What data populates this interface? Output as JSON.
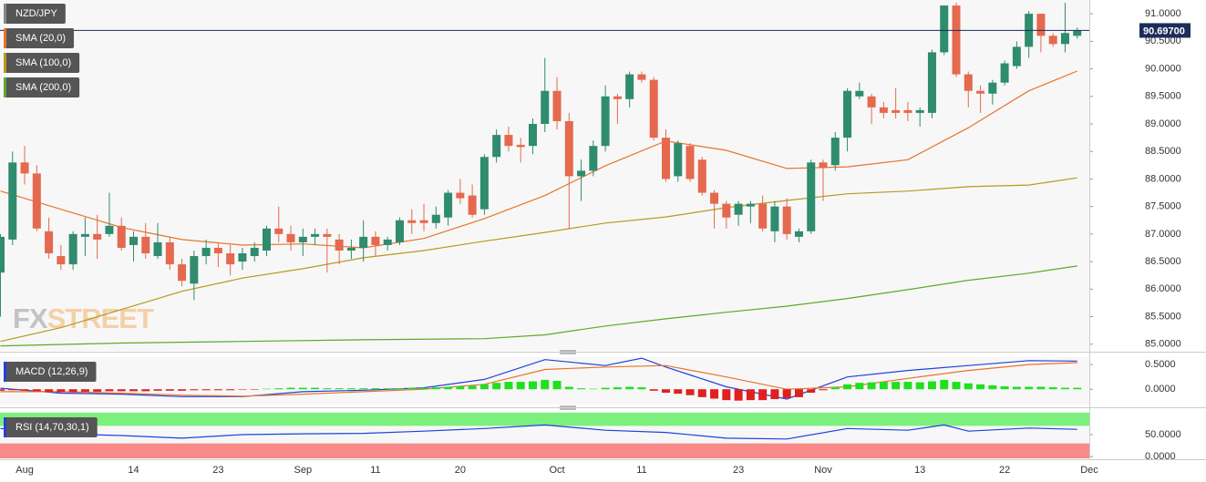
{
  "watermark": [
    "FX",
    "STREET"
  ],
  "chart_data": [
    {
      "type": "candlestick",
      "name": "NZD/JPY",
      "colors": {
        "up": "#2f8c6e",
        "down": "#e4694e"
      },
      "open": [
        86.3,
        86.9,
        88.3,
        88.1,
        87.05,
        86.6,
        86.45,
        86.95,
        87.0,
        87.0,
        87.15,
        86.8,
        86.95,
        86.6,
        86.85,
        86.45,
        86.1,
        86.6,
        86.75,
        86.65,
        86.5,
        86.6,
        86.7,
        87.1,
        87.0,
        86.85,
        86.95,
        87.0,
        86.9,
        86.7,
        86.75,
        86.95,
        86.8,
        86.85,
        87.25,
        87.25,
        87.2,
        87.3,
        87.75,
        87.7,
        87.45,
        88.4,
        88.8,
        88.62,
        88.6,
        89.0,
        89.6,
        89.05,
        88.05,
        88.15,
        88.6,
        89.5,
        89.45,
        89.9,
        89.8,
        88.75,
        88.05,
        88.6,
        88.35,
        87.75,
        87.55,
        87.35,
        87.5,
        87.55,
        87.05,
        87.5,
        86.95,
        87.05,
        88.3,
        88.25,
        88.75,
        89.5,
        89.5,
        89.3,
        89.25,
        89.25,
        89.2,
        89.2,
        90.3,
        91.15,
        89.9,
        89.6,
        89.55,
        89.75,
        90.05,
        90.4,
        91.0,
        90.6,
        90.45,
        90.6
      ],
      "high": [
        87.0,
        88.5,
        88.6,
        88.25,
        87.3,
        86.8,
        87.05,
        87.3,
        87.35,
        87.75,
        87.3,
        87.05,
        87.2,
        87.2,
        86.95,
        86.55,
        86.7,
        86.9,
        86.85,
        86.8,
        86.75,
        86.85,
        87.15,
        87.5,
        87.15,
        87.1,
        87.1,
        87.1,
        87.0,
        86.9,
        87.25,
        87.05,
        86.95,
        87.3,
        87.45,
        87.55,
        87.5,
        87.8,
        88.0,
        87.9,
        88.45,
        88.9,
        88.95,
        88.75,
        89.1,
        90.2,
        89.85,
        89.2,
        88.35,
        88.7,
        89.7,
        89.55,
        89.95,
        89.95,
        89.85,
        88.9,
        88.7,
        88.65,
        88.4,
        87.8,
        87.6,
        87.6,
        87.6,
        87.7,
        87.6,
        87.65,
        87.1,
        88.35,
        88.35,
        88.85,
        89.65,
        89.75,
        89.55,
        89.4,
        89.65,
        89.4,
        89.3,
        90.35,
        91.15,
        91.2,
        89.95,
        89.7,
        89.8,
        90.15,
        90.5,
        91.05,
        91.0,
        90.65,
        91.2,
        90.75
      ],
      "low": [
        85.5,
        86.8,
        87.9,
        87.05,
        86.55,
        86.35,
        86.35,
        86.6,
        86.55,
        86.95,
        86.7,
        86.5,
        86.55,
        86.55,
        86.35,
        86.05,
        85.8,
        86.45,
        86.4,
        86.25,
        86.35,
        86.5,
        86.6,
        86.85,
        86.7,
        86.6,
        86.8,
        86.3,
        86.45,
        86.55,
        86.5,
        86.6,
        86.7,
        86.8,
        87.0,
        87.05,
        87.1,
        87.15,
        87.55,
        87.3,
        87.35,
        88.3,
        88.5,
        88.3,
        88.45,
        88.85,
        88.9,
        87.1,
        87.6,
        88.05,
        88.5,
        89.0,
        89.3,
        89.75,
        88.7,
        87.95,
        87.95,
        87.95,
        87.7,
        87.1,
        87.1,
        87.15,
        87.2,
        87.05,
        86.85,
        86.9,
        86.85,
        87.0,
        87.6,
        88.15,
        88.5,
        89.45,
        89.0,
        89.1,
        89.1,
        89.05,
        88.95,
        89.1,
        90.25,
        89.85,
        89.3,
        89.2,
        89.35,
        89.7,
        90.0,
        90.2,
        90.3,
        90.4,
        90.3,
        90.55
      ],
      "close": [
        86.95,
        88.3,
        88.1,
        87.1,
        86.65,
        86.45,
        87.0,
        87.0,
        86.9,
        87.15,
        86.75,
        86.95,
        86.65,
        86.85,
        86.45,
        86.15,
        86.6,
        86.75,
        86.65,
        86.45,
        86.65,
        86.75,
        87.1,
        87.0,
        86.85,
        86.95,
        87.0,
        86.95,
        86.7,
        86.75,
        86.95,
        86.8,
        86.9,
        87.25,
        87.2,
        87.2,
        87.35,
        87.75,
        87.65,
        87.35,
        88.4,
        88.8,
        88.6,
        88.58,
        89.0,
        89.6,
        89.05,
        88.05,
        88.15,
        88.6,
        89.5,
        89.45,
        89.9,
        89.8,
        88.75,
        88.0,
        88.65,
        88.0,
        87.75,
        87.55,
        87.3,
        87.55,
        87.55,
        87.1,
        87.5,
        87.0,
        87.05,
        88.3,
        88.2,
        88.75,
        89.6,
        89.6,
        89.3,
        89.2,
        89.2,
        89.2,
        89.25,
        90.3,
        91.15,
        89.9,
        89.6,
        89.55,
        89.75,
        90.1,
        90.4,
        91.0,
        90.6,
        90.45,
        90.65,
        90.7
      ],
      "series": [
        {
          "name": "SMA (20,0)",
          "color": "#e8742a",
          "x": [
            0,
            5,
            10,
            15,
            20,
            25,
            30,
            35,
            40,
            45,
            50,
            55,
            60,
            65,
            70,
            75,
            80,
            85,
            89
          ],
          "values": [
            87.78,
            87.45,
            87.12,
            86.9,
            86.8,
            86.82,
            86.75,
            86.92,
            87.28,
            87.7,
            88.24,
            88.69,
            88.52,
            88.19,
            88.22,
            88.35,
            88.93,
            89.6,
            89.96
          ]
        },
        {
          "name": "SMA (100,0)",
          "color": "#b59a1e",
          "x": [
            0,
            5,
            10,
            15,
            20,
            25,
            30,
            35,
            40,
            45,
            50,
            55,
            60,
            65,
            70,
            75,
            80,
            85,
            89
          ],
          "values": [
            85.05,
            85.3,
            85.63,
            85.96,
            86.2,
            86.37,
            86.57,
            86.7,
            86.87,
            87.03,
            87.2,
            87.31,
            87.48,
            87.61,
            87.73,
            87.78,
            87.86,
            87.89,
            88.02
          ]
        },
        {
          "name": "SMA (200,0)",
          "color": "#5aab2a",
          "x": [
            0,
            10,
            20,
            30,
            40,
            45,
            50,
            55,
            60,
            65,
            70,
            75,
            80,
            85,
            89
          ],
          "values": [
            84.97,
            85.02,
            85.05,
            85.08,
            85.1,
            85.17,
            85.33,
            85.46,
            85.58,
            85.69,
            85.83,
            85.99,
            86.16,
            86.29,
            86.42
          ]
        }
      ],
      "last": {
        "value": 90.697,
        "label": "90.69700"
      },
      "xlim": [
        0,
        90
      ],
      "ylim": [
        84.88,
        91.25
      ],
      "yticks": [
        {
          "value": 85,
          "label": "85.0000"
        },
        {
          "value": 85.5,
          "label": "85.5000"
        },
        {
          "value": 86,
          "label": "86.0000"
        },
        {
          "value": 86.5,
          "label": "86.5000"
        },
        {
          "value": 87,
          "label": "87.0000"
        },
        {
          "value": 87.5,
          "label": "87.5000"
        },
        {
          "value": 88,
          "label": "88.0000"
        },
        {
          "value": 88.5,
          "label": "88.5000"
        },
        {
          "value": 89,
          "label": "89.0000"
        },
        {
          "value": 89.5,
          "label": "89.5000"
        },
        {
          "value": 90,
          "label": "90.0000"
        },
        {
          "value": 90.5,
          "label": "90.5000"
        },
        {
          "value": 91,
          "label": "91.0000"
        }
      ],
      "grid": true
    },
    {
      "type": "macd",
      "name": "MACD (12,26,9)",
      "histogram": {
        "colors": {
          "up": "#1fe01f",
          "down": "#e01f1f"
        },
        "values": [
          -0.03,
          -0.02,
          -0.03,
          -0.04,
          -0.05,
          -0.06,
          -0.06,
          -0.05,
          -0.05,
          -0.04,
          -0.04,
          -0.04,
          -0.04,
          -0.03,
          -0.03,
          -0.03,
          -0.02,
          -0.02,
          -0.02,
          -0.02,
          -0.01,
          -0.01,
          0.01,
          0.02,
          0.03,
          0.03,
          0.03,
          0.02,
          0.02,
          0.02,
          0.02,
          0.02,
          0.02,
          0.02,
          0.03,
          0.03,
          0.04,
          0.05,
          0.06,
          0.07,
          0.1,
          0.13,
          0.15,
          0.15,
          0.16,
          0.19,
          0.17,
          0.05,
          0.02,
          0.01,
          0.03,
          0.04,
          0.05,
          0.04,
          -0.03,
          -0.07,
          -0.09,
          -0.12,
          -0.16,
          -0.19,
          -0.22,
          -0.23,
          -0.22,
          -0.22,
          -0.2,
          -0.18,
          -0.16,
          -0.07,
          -0.02,
          0.04,
          0.1,
          0.13,
          0.14,
          0.15,
          0.15,
          0.15,
          0.14,
          0.16,
          0.19,
          0.15,
          0.12,
          0.1,
          0.08,
          0.06,
          0.05,
          0.05,
          0.05,
          0.04,
          0.03,
          0.03
        ]
      },
      "series": [
        {
          "color": "#2040e0",
          "x": [
            0,
            5,
            10,
            15,
            20,
            25,
            30,
            35,
            40,
            45,
            50,
            53,
            55,
            60,
            65,
            70,
            75,
            80,
            85,
            89
          ],
          "values": [
            0.02,
            -0.08,
            -0.1,
            -0.15,
            -0.15,
            -0.05,
            -0.02,
            0.03,
            0.2,
            0.6,
            0.48,
            0.63,
            0.45,
            0.05,
            -0.2,
            0.25,
            0.38,
            0.48,
            0.58,
            0.57
          ]
        },
        {
          "color": "#e8742a",
          "x": [
            0,
            5,
            10,
            15,
            20,
            25,
            30,
            35,
            40,
            45,
            50,
            55,
            60,
            65,
            70,
            75,
            80,
            85,
            89
          ],
          "values": [
            -0.05,
            -0.05,
            -0.08,
            -0.12,
            -0.14,
            -0.1,
            -0.05,
            0.0,
            0.1,
            0.4,
            0.45,
            0.48,
            0.25,
            0.0,
            0.05,
            0.22,
            0.38,
            0.5,
            0.54
          ]
        }
      ],
      "xlim": [
        0,
        90
      ],
      "ylim": [
        -0.31,
        0.65
      ],
      "yticks": [
        {
          "value": 0,
          "label": "0.0000"
        },
        {
          "value": 0.5,
          "label": "0.5000"
        }
      ],
      "grid": true
    },
    {
      "type": "rsi",
      "name": "RSI (14,70,30,1)",
      "bands": [
        {
          "from": 70,
          "to": 100,
          "color": "#7cf07c"
        },
        {
          "from": -4,
          "to": 30,
          "color": "#f88a8a"
        }
      ],
      "series": [
        {
          "color": "#2040e0",
          "x": [
            0,
            5,
            10,
            15,
            20,
            25,
            30,
            35,
            40,
            45,
            50,
            55,
            60,
            65,
            70,
            75,
            78,
            80,
            85,
            89
          ],
          "values": [
            64,
            52,
            48,
            42,
            50,
            52,
            53,
            58,
            64,
            72,
            60,
            55,
            42,
            40,
            64,
            60,
            72,
            58,
            65,
            62
          ]
        }
      ],
      "xlim": [
        0,
        90
      ],
      "ylim": [
        -4,
        102
      ],
      "yticks": [
        {
          "value": 0,
          "label": "0.0000"
        },
        {
          "value": 50,
          "label": "50.0000"
        }
      ],
      "xticks": [
        {
          "value": 2,
          "label": "Aug"
        },
        {
          "value": 11,
          "label": "14"
        },
        {
          "value": 18,
          "label": "23"
        },
        {
          "value": 25,
          "label": "Sep"
        },
        {
          "value": 31,
          "label": "11"
        },
        {
          "value": 38,
          "label": "20"
        },
        {
          "value": 46,
          "label": "Oct"
        },
        {
          "value": 53,
          "label": "11"
        },
        {
          "value": 61,
          "label": "23"
        },
        {
          "value": 68,
          "label": "Nov"
        },
        {
          "value": 76,
          "label": "13"
        },
        {
          "value": 83,
          "label": "22"
        },
        {
          "value": 90,
          "label": "Dec"
        }
      ],
      "grid": true
    }
  ]
}
